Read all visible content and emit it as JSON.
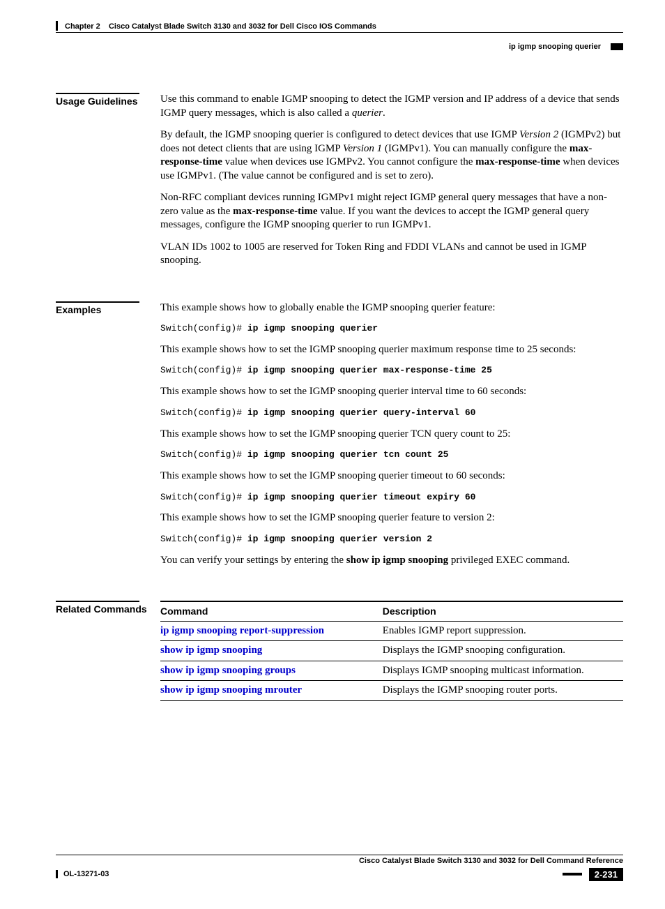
{
  "header": {
    "chapter": "Chapter 2",
    "chapter_title": "Cisco Catalyst Blade Switch 3130 and 3032 for Dell Cisco IOS Commands",
    "page_subtitle": "ip igmp snooping querier"
  },
  "sections": {
    "usage": {
      "label": "Usage Guidelines",
      "p1_a": "Use this command to enable IGMP snooping to detect the IGMP version and IP address of a device that sends IGMP query messages, which is also called a ",
      "p1_i": "querier",
      "p1_b": ".",
      "p2_a": "By default, the IGMP snooping querier is configured to detect devices that use IGMP ",
      "p2_i1": "Version 2",
      "p2_b": " (IGMPv2) but does not detect clients that are using IGMP ",
      "p2_i2": "Version 1",
      "p2_c": " (IGMPv1). You can manually configure the ",
      "p2_bold1": "max-response-time",
      "p2_d": " value when devices use IGMPv2. You cannot configure the ",
      "p2_bold2": "max-response-time",
      "p2_e": " when devices use IGMPv1. (The value cannot be configured and is set to zero).",
      "p3_a": "Non-RFC compliant devices running IGMPv1 might reject IGMP general query messages that have a non-zero value as the ",
      "p3_bold": "max-response-time",
      "p3_b": " value. If you want the devices to accept the IGMP general query messages, configure the IGMP snooping querier to run IGMPv1.",
      "p4": "VLAN IDs 1002 to 1005 are reserved for Token Ring and FDDI VLANs and cannot be used in IGMP snooping."
    },
    "examples": {
      "label": "Examples",
      "prompt": "Switch(config)# ",
      "items": [
        {
          "intro": "This example shows how to globally enable the IGMP snooping querier feature:",
          "cmd": "ip igmp snooping querier"
        },
        {
          "intro": "This example shows how to set the IGMP snooping querier maximum response time to 25 seconds:",
          "cmd": "ip igmp snooping querier max-response-time 25"
        },
        {
          "intro": "This example shows how to set the IGMP snooping querier interval time to 60 seconds:",
          "cmd": "ip igmp snooping querier query-interval 60"
        },
        {
          "intro": "This example shows how to set the IGMP snooping querier TCN query count to 25:",
          "cmd": "ip igmp snooping querier tcn count 25"
        },
        {
          "intro": "This example shows how to set the IGMP snooping querier timeout to 60 seconds:",
          "cmd": "ip igmp snooping querier timeout expiry 60"
        },
        {
          "intro": "This example shows how to set the IGMP snooping querier feature to version 2:",
          "cmd": "ip igmp snooping querier version 2"
        }
      ],
      "verify_a": "You can verify your settings by entering the ",
      "verify_bold": "show ip igmp snooping",
      "verify_b": " privileged EXEC command."
    },
    "related": {
      "label": "Related Commands",
      "col1": "Command",
      "col2": "Description",
      "rows": [
        {
          "cmd": "ip igmp snooping report-suppression",
          "desc": "Enables IGMP report suppression."
        },
        {
          "cmd": "show ip igmp snooping",
          "desc": "Displays the IGMP snooping configuration."
        },
        {
          "cmd": "show ip igmp snooping groups",
          "desc": "Displays IGMP snooping multicast information."
        },
        {
          "cmd": "show ip igmp snooping mrouter",
          "desc": "Displays the IGMP snooping router ports."
        }
      ]
    }
  },
  "footer": {
    "book_title": "Cisco Catalyst Blade Switch 3130 and 3032 for Dell Command Reference",
    "doc_id": "OL-13271-03",
    "page_number": "2-231"
  }
}
